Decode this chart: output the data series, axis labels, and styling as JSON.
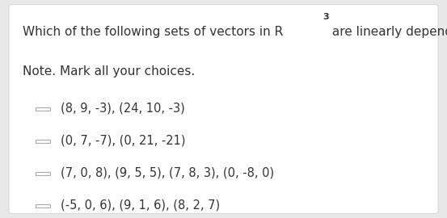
{
  "title_part1": "Which of the following sets of vectors in R",
  "title_superscript": "3",
  "title_part2": " are linearly dependent?",
  "note": "Note. Mark all your choices.",
  "options": [
    "(8, 9, -3), (24, 10, -3)",
    "(0, 7, -7), (0, 21, -21)",
    "(7, 0, 8), (9, 5, 5), (7, 8, 3), (0, -8, 0)",
    "(-5, 0, 6), (9, 1, 6), (8, 2, 7)"
  ],
  "bg_color": "#e8e8e8",
  "card_color": "#ffffff",
  "text_color": "#333333",
  "note_color": "#333333",
  "option_color": "#333333",
  "checkbox_color": "#aaaaaa",
  "title_fontsize": 11.0,
  "note_fontsize": 11.0,
  "option_fontsize": 10.5,
  "checkbox_size": 0.016
}
